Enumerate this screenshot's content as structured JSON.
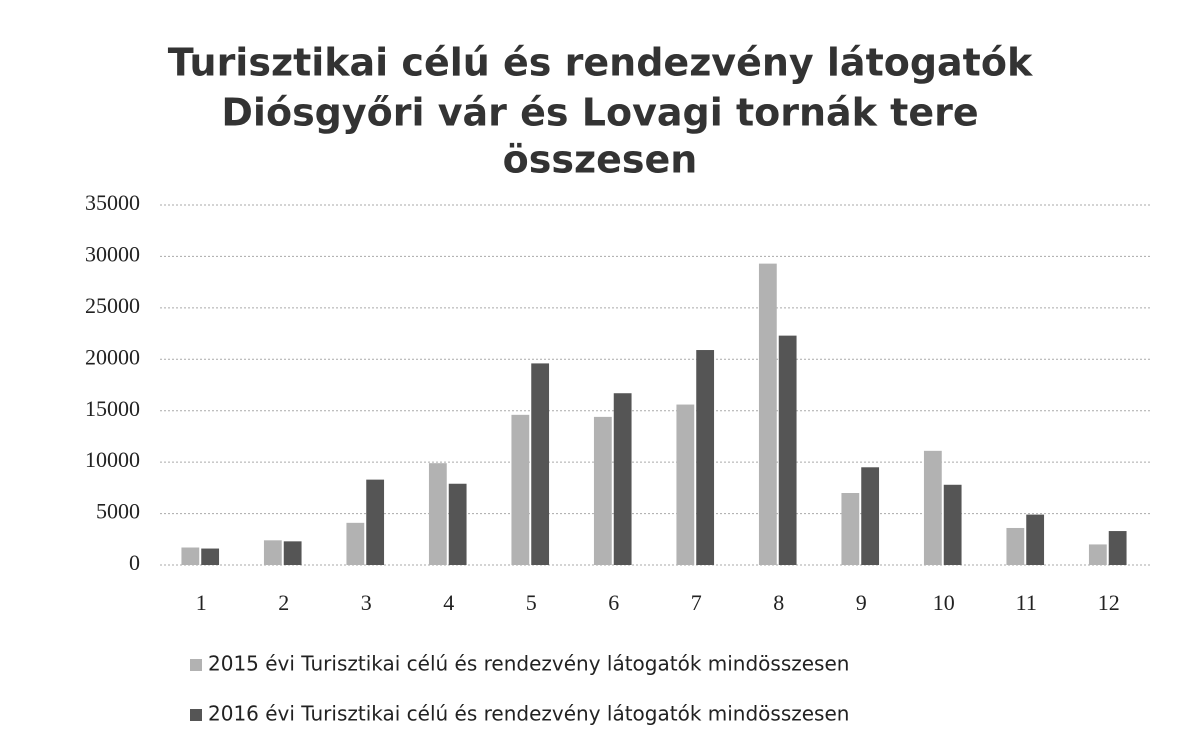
{
  "chart_data": {
    "type": "bar",
    "title": [
      "Turisztikai célú és rendezvény látogatók",
      "Diósgyőri vár és Lovagi tornák tere",
      "összesen"
    ],
    "categories": [
      "1",
      "2",
      "3",
      "4",
      "5",
      "6",
      "7",
      "8",
      "9",
      "10",
      "11",
      "12"
    ],
    "series": [
      {
        "name": "2015 évi Turisztikai célú és rendezvény látogatók mindösszesen",
        "color": "#b2b2b2",
        "values": [
          1700,
          2400,
          4100,
          9900,
          14600,
          14400,
          15600,
          29300,
          7000,
          11100,
          3600,
          2000
        ]
      },
      {
        "name": "2016 évi Turisztikai célú és rendezvény látogatók mindösszesen",
        "color": "#555555",
        "values": [
          1600,
          2300,
          8300,
          7900,
          19600,
          16700,
          20900,
          22300,
          9500,
          7800,
          4900,
          3300
        ]
      }
    ],
    "ylim": [
      0,
      35000
    ],
    "yticks": [
      0,
      5000,
      10000,
      15000,
      20000,
      25000,
      30000,
      35000
    ],
    "grid": true,
    "legend": "bottom"
  }
}
